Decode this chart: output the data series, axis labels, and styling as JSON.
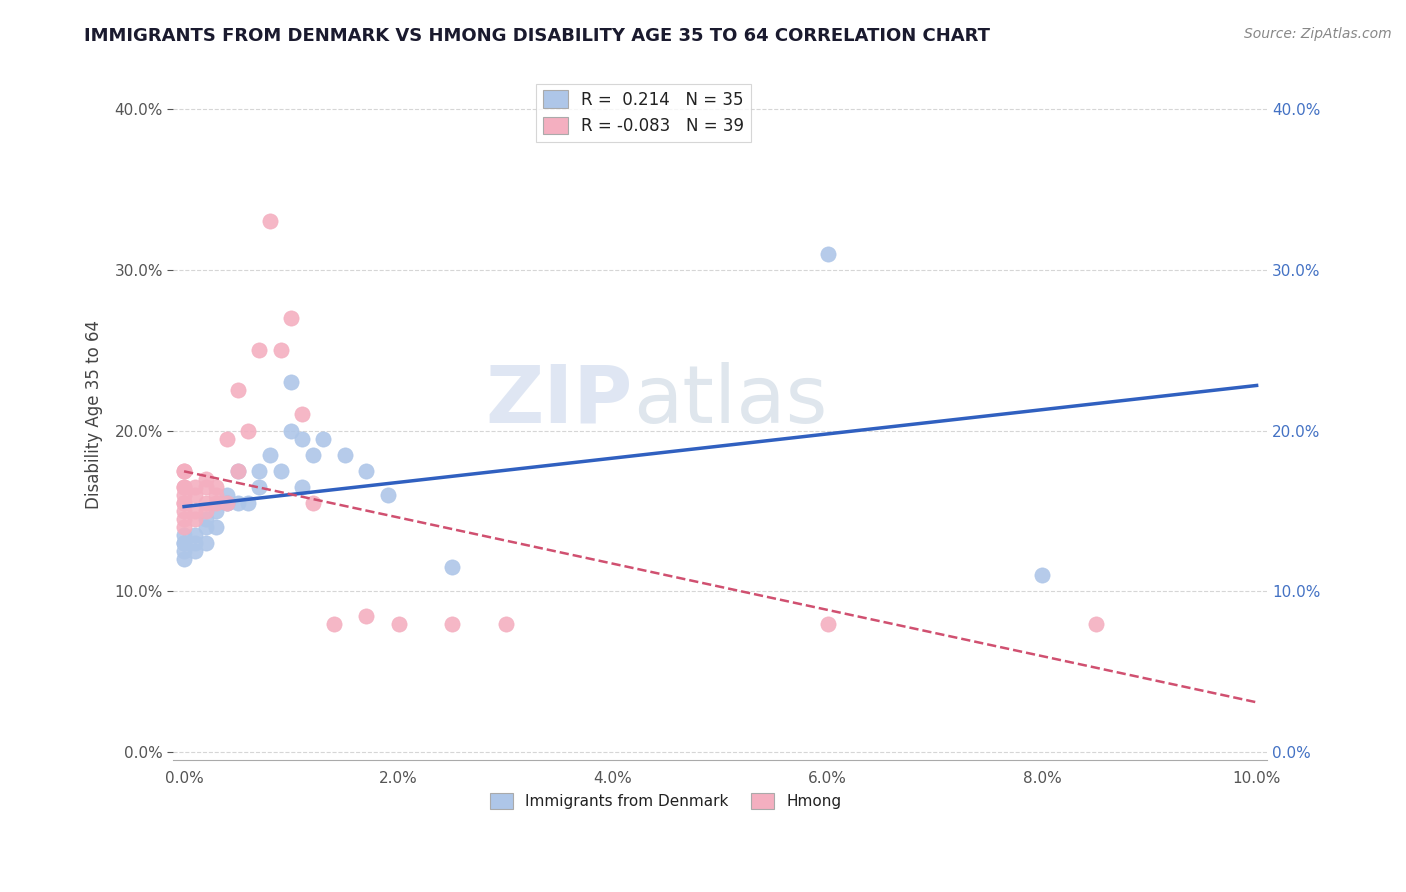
{
  "title": "IMMIGRANTS FROM DENMARK VS HMONG DISABILITY AGE 35 TO 64 CORRELATION CHART",
  "source": "Source: ZipAtlas.com",
  "ylabel": "Disability Age 35 to 64",
  "xlim": [
    -0.001,
    0.101
  ],
  "ylim": [
    -0.005,
    0.425
  ],
  "xticks": [
    0.0,
    0.02,
    0.04,
    0.06,
    0.08,
    0.1
  ],
  "xtick_labels": [
    "0.0%",
    "2.0%",
    "4.0%",
    "6.0%",
    "8.0%",
    "10.0%"
  ],
  "yticks": [
    0.0,
    0.1,
    0.2,
    0.3,
    0.4
  ],
  "ytick_labels": [
    "0.0%",
    "10.0%",
    "20.0%",
    "30.0%",
    "40.0%"
  ],
  "R_denmark": 0.214,
  "N_denmark": 35,
  "R_hmong": -0.083,
  "N_hmong": 39,
  "denmark_color": "#aec6e8",
  "hmong_color": "#f4afc0",
  "denmark_line_color": "#3060c0",
  "hmong_line_color": "#d05070",
  "background_color": "#ffffff",
  "denmark_x": [
    0.0,
    0.0,
    0.0,
    0.0,
    0.0,
    0.001,
    0.001,
    0.001,
    0.002,
    0.002,
    0.002,
    0.003,
    0.003,
    0.004,
    0.004,
    0.004,
    0.005,
    0.005,
    0.006,
    0.007,
    0.007,
    0.008,
    0.009,
    0.01,
    0.01,
    0.011,
    0.011,
    0.012,
    0.013,
    0.015,
    0.017,
    0.019,
    0.025,
    0.06,
    0.08
  ],
  "denmark_y": [
    0.13,
    0.135,
    0.13,
    0.125,
    0.12,
    0.13,
    0.125,
    0.135,
    0.13,
    0.14,
    0.145,
    0.14,
    0.15,
    0.155,
    0.16,
    0.155,
    0.155,
    0.175,
    0.155,
    0.175,
    0.165,
    0.185,
    0.175,
    0.2,
    0.23,
    0.165,
    0.195,
    0.185,
    0.195,
    0.185,
    0.175,
    0.16,
    0.115,
    0.31,
    0.11
  ],
  "hmong_x": [
    0.0,
    0.0,
    0.0,
    0.0,
    0.0,
    0.0,
    0.0,
    0.0,
    0.0,
    0.0,
    0.001,
    0.001,
    0.001,
    0.001,
    0.002,
    0.002,
    0.002,
    0.002,
    0.003,
    0.003,
    0.003,
    0.004,
    0.004,
    0.005,
    0.005,
    0.006,
    0.007,
    0.008,
    0.009,
    0.01,
    0.011,
    0.012,
    0.014,
    0.017,
    0.02,
    0.025,
    0.03,
    0.06,
    0.085
  ],
  "hmong_y": [
    0.175,
    0.175,
    0.165,
    0.165,
    0.16,
    0.155,
    0.155,
    0.15,
    0.145,
    0.14,
    0.165,
    0.16,
    0.15,
    0.145,
    0.17,
    0.165,
    0.155,
    0.15,
    0.165,
    0.16,
    0.155,
    0.195,
    0.155,
    0.225,
    0.175,
    0.2,
    0.25,
    0.33,
    0.25,
    0.27,
    0.21,
    0.155,
    0.08,
    0.085,
    0.08,
    0.08,
    0.08,
    0.08,
    0.08
  ]
}
